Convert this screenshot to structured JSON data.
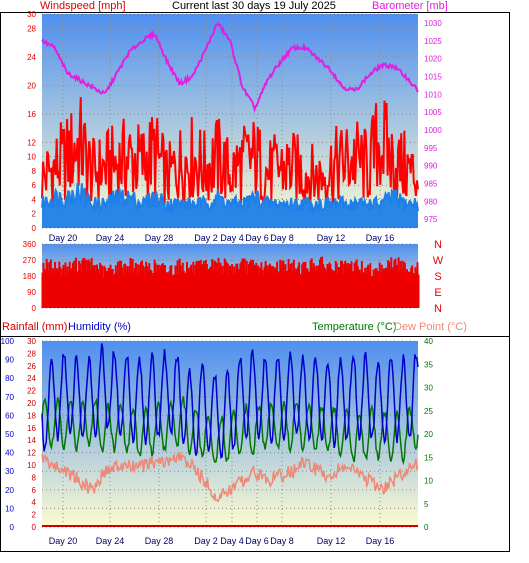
{
  "header": {
    "wind_label": "Windspeed [mph]",
    "title": "Current last 30 days 19 July 2025",
    "baro_label": "Barometer [mb]"
  },
  "middle": {
    "rain_label": "Rainfall (mm)",
    "humidity_label": "Humidity (%)",
    "temp_label": "Temperature (°C)",
    "dew_label": "Dew Point (°C)"
  },
  "colors": {
    "wind": "#dd0000",
    "gust": "#ff0000",
    "avgwind": "#1e7fe8",
    "baro": "#e020e0",
    "dir": "#ee0000",
    "humidity": "#0000cc",
    "temperature": "#007700",
    "dewpoint": "#ee8877",
    "rain": "#cc0000",
    "sky_top": "#4f8ff0",
    "sky_bottom": "#fdfbd0"
  },
  "x_ticks": [
    "Day 20",
    "Day 24",
    "Day 28",
    "Day 2",
    "Day 4",
    "Day 6",
    "Day 8",
    "Day 12",
    "Day 16"
  ],
  "chart_data": [
    {
      "type": "line",
      "title": "Current last 30 days 19 July 2025",
      "ylabel": "Windspeed [mph]",
      "y2label": "Barometer [mb]",
      "ylim": [
        0,
        30
      ],
      "y2lim": [
        972.5,
        1032.5
      ],
      "y_ticks": [
        0,
        2,
        4,
        6,
        8,
        10,
        12,
        16,
        20,
        24,
        28,
        30
      ],
      "y2_ticks": [
        975,
        980,
        985,
        990,
        995,
        1000,
        1005,
        1010,
        1015,
        1020,
        1025,
        1030
      ],
      "grid": true,
      "x": [
        0,
        1,
        2,
        3,
        4,
        5,
        6,
        7,
        8,
        9,
        10,
        11,
        12,
        13,
        14,
        15,
        16,
        17,
        18,
        19,
        20,
        21,
        22,
        23,
        24,
        25,
        26,
        27,
        28,
        29,
        30
      ],
      "series": [
        {
          "name": "Barometer [mb]",
          "axis": "right",
          "values": [
            1025,
            1023,
            1016,
            1014,
            1012,
            1010,
            1016,
            1022,
            1025,
            1027,
            1019,
            1013,
            1015,
            1022,
            1030,
            1025,
            1012,
            1006,
            1014,
            1019,
            1023,
            1023,
            1020,
            1017,
            1012,
            1011,
            1015,
            1018,
            1018,
            1015,
            1011
          ]
        },
        {
          "axis": "left",
          "role": "gust",
          "values": [
            10,
            12,
            14,
            17,
            11,
            12,
            13,
            14,
            13,
            15,
            10,
            13,
            14,
            12,
            14,
            11,
            13,
            14,
            11,
            12,
            12,
            11,
            10,
            12,
            13,
            14,
            12,
            18,
            13,
            12,
            10
          ]
        },
        {
          "axis": "left",
          "role": "average",
          "values": [
            3,
            4,
            4,
            5,
            3,
            3,
            4,
            4,
            3,
            4,
            3,
            3,
            3,
            3,
            4,
            3,
            3,
            4,
            3,
            3,
            3,
            3,
            3,
            3,
            3,
            3,
            3,
            3,
            4,
            3,
            3
          ]
        }
      ]
    },
    {
      "type": "scatter",
      "ylabel": "",
      "ylim": [
        0,
        360
      ],
      "y_ticks": [
        0,
        90,
        180,
        270,
        360
      ],
      "y_tick_labels_right": [
        "N",
        "E",
        "S",
        "W",
        "N"
      ],
      "grid": true,
      "x": [
        0,
        1,
        2,
        3,
        4,
        5,
        6,
        7,
        8,
        9,
        10,
        11,
        12,
        13,
        14,
        15,
        16,
        17,
        18,
        19,
        20,
        21,
        22,
        23,
        24,
        25,
        26,
        27,
        28,
        29,
        30
      ],
      "series": [
        {
          "name": "Wind direction",
          "values": [
            240,
            230,
            220,
            250,
            240,
            200,
            230,
            240,
            220,
            230,
            210,
            240,
            220,
            230,
            250,
            220,
            240,
            230,
            220,
            240,
            230,
            230,
            250,
            230,
            220,
            240,
            210,
            230,
            250,
            230,
            220
          ]
        }
      ]
    },
    {
      "type": "line",
      "ylim": [
        0,
        100
      ],
      "y_ticks": [
        0,
        10,
        20,
        30,
        40,
        50,
        60,
        70,
        80,
        90,
        100
      ],
      "rain_ticks": [
        0,
        2,
        4,
        6,
        8,
        10,
        12,
        14,
        16,
        18,
        20,
        22,
        24,
        26,
        28,
        30
      ],
      "y2lim": [
        0,
        40
      ],
      "y2_ticks": [
        0,
        5,
        10,
        15,
        20,
        25,
        30,
        35,
        40
      ],
      "grid": true,
      "x": [
        0,
        1,
        2,
        3,
        4,
        5,
        6,
        7,
        8,
        9,
        10,
        11,
        12,
        13,
        14,
        15,
        16,
        17,
        18,
        19,
        20,
        21,
        22,
        23,
        24,
        25,
        26,
        27,
        28,
        29,
        30
      ],
      "series": [
        {
          "name": "Humidity (%)",
          "axis": "left",
          "values": [
            60,
            70,
            72,
            68,
            70,
            75,
            72,
            70,
            68,
            70,
            72,
            70,
            60,
            66,
            58,
            62,
            70,
            72,
            68,
            70,
            72,
            68,
            70,
            66,
            68,
            72,
            70,
            66,
            70,
            68,
            72
          ]
        },
        {
          "name": "Temperature (°C)",
          "axis": "right",
          "values": [
            23,
            22,
            22,
            22,
            23,
            21,
            22,
            21,
            20,
            21,
            22,
            23,
            21,
            20,
            18,
            20,
            21,
            21,
            22,
            22,
            22,
            22,
            21,
            21,
            20,
            19,
            20,
            20,
            19,
            20,
            22
          ]
        },
        {
          "name": "Dew Point (°C)",
          "axis": "right",
          "values": [
            15,
            13,
            12,
            10,
            8,
            12,
            13,
            13,
            13,
            14,
            14,
            15,
            13,
            10,
            6,
            8,
            10,
            12,
            10,
            11,
            12,
            14,
            12,
            11,
            13,
            12,
            10,
            8,
            10,
            12,
            14
          ]
        },
        {
          "name": "Rainfall (mm)",
          "axis": "left-rain",
          "values": [
            0,
            0,
            0,
            0,
            0,
            0,
            0,
            0,
            0,
            0,
            0,
            0,
            0,
            0,
            0,
            0,
            0,
            0,
            0,
            0,
            0,
            0,
            0,
            0,
            0,
            0,
            0,
            0,
            0,
            0,
            0
          ],
          "daily_totals": [
            0,
            0,
            0,
            0,
            0,
            0,
            0,
            0,
            0,
            0,
            0,
            0,
            0,
            0,
            0,
            0,
            0,
            0,
            0,
            0,
            0,
            0,
            0,
            0,
            0,
            0,
            0,
            0,
            0,
            0,
            0
          ]
        }
      ]
    }
  ]
}
